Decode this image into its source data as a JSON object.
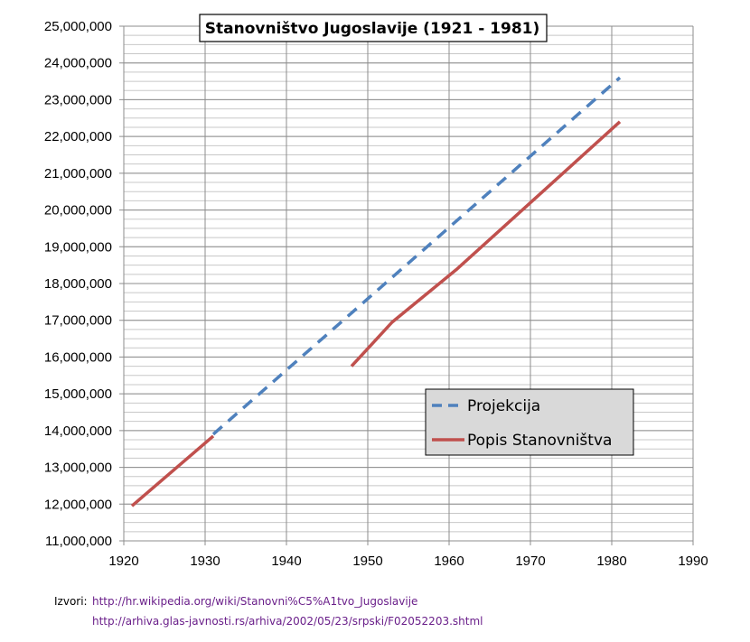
{
  "chart_data": {
    "type": "line",
    "title": "Stanovništvo Jugoslavije (1921 - 1981)",
    "xlabel": "",
    "ylabel": "",
    "xlim": [
      1920,
      1990
    ],
    "ylim": [
      11000000,
      25000000
    ],
    "x_ticks": [
      1920,
      1930,
      1940,
      1950,
      1960,
      1970,
      1980,
      1990
    ],
    "x_tick_labels": [
      "1920",
      "1930",
      "1940",
      "1950",
      "1960",
      "1970",
      "1980",
      "1990"
    ],
    "y_ticks": [
      11000000,
      12000000,
      13000000,
      14000000,
      15000000,
      16000000,
      17000000,
      18000000,
      19000000,
      20000000,
      21000000,
      22000000,
      23000000,
      24000000,
      25000000
    ],
    "y_tick_labels": [
      "11,000,000",
      "12,000,000",
      "13,000,000",
      "14,000,000",
      "15,000,000",
      "16,000,000",
      "17,000,000",
      "18,000,000",
      "19,000,000",
      "20,000,000",
      "21,000,000",
      "22,000,000",
      "23,000,000",
      "24,000,000",
      "25,000,000"
    ],
    "minor_y_step": 250000,
    "grid": true,
    "legend_position": "lower-right",
    "series": [
      {
        "name": "Projekcija",
        "style": "dashed",
        "color": "#4f81bd",
        "x": [
          1931,
          1981
        ],
        "y": [
          13900000,
          23600000
        ]
      },
      {
        "name": "Popis Stanovništva",
        "style": "solid",
        "color": "#c0504d",
        "segments": [
          {
            "x": [
              1921,
              1931
            ],
            "y": [
              11950000,
              13850000
            ]
          },
          {
            "x": [
              1948,
              1953,
              1961,
              1971,
              1981
            ],
            "y": [
              15750000,
              16950000,
              18400000,
              20400000,
              22400000
            ]
          }
        ]
      }
    ]
  },
  "sources": {
    "label": "Izvori:",
    "links": [
      "http://hr.wikipedia.org/wiki/Stanovni%C5%A1tvo_Jugoslavije",
      "http://arhiva.glas-javnosti.rs/arhiva/2002/05/23/srpski/F02052203.shtml"
    ]
  }
}
